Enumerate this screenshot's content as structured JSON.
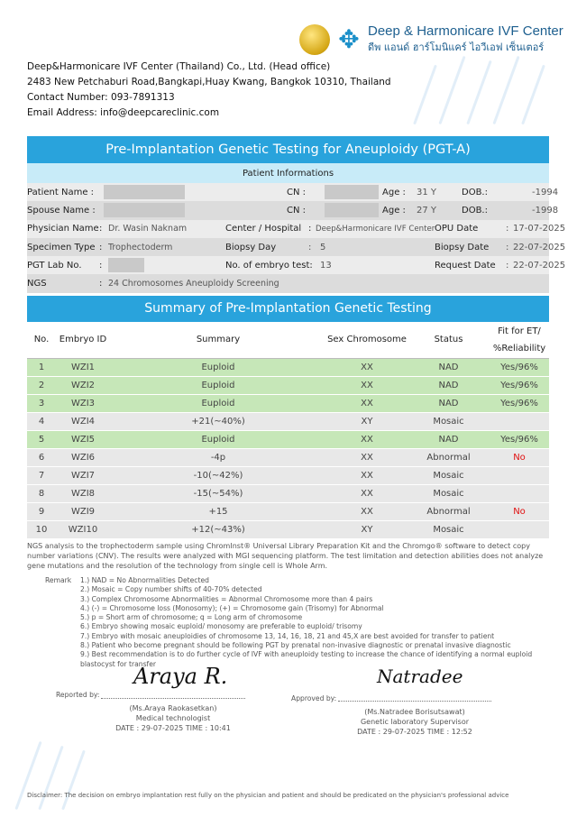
{
  "header": {
    "brand_en": "Deep & Harmonicare IVF Center",
    "brand_th": "ดีพ แอนด์ ฮาร์โมนิแคร์ ไอวีเอฟ เซ็นเตอร์",
    "address": [
      "Deep&Harmonicare IVF Center (Thailand) Co., Ltd. (Head office)",
      "2483 New Petchaburi Road,Bangkapi,Huay Kwang, Bangkok 10310, Thailand",
      "Contact Number: 093-7891313",
      "Email Address: info@deepcareclinic.com"
    ]
  },
  "title": "Pre-Implantation Genetic Testing for Aneuploidy (PGT-A)",
  "patient": {
    "heading": "Patient Informations",
    "patient_name_label": "Patient Name :",
    "cn_label": "CN :",
    "age_label": "Age :",
    "patient_age": "31 Y",
    "dob_label": "DOB.:",
    "patient_dob": "-1994",
    "spouse_name_label": "Spouse Name :",
    "spouse_age": "27 Y",
    "spouse_dob": "-1998",
    "physician_label": "Physician Name",
    "physician": "Dr. Wasin Naknam",
    "center_label": "Center / Hospital",
    "center": "Deep&Harmonicare IVF Center",
    "opu_label": "OPU Date",
    "opu": "17-07-2025",
    "specimen_label": "Specimen Type",
    "specimen": "Trophectoderm",
    "biopsy_day_label": "Biopsy Day",
    "biopsy_day": "5",
    "biopsy_date_label": "Biopsy Date",
    "biopsy_date": "22-07-2025",
    "lab_label": "PGT Lab No.",
    "embryo_test_label": "No. of embryo test:",
    "embryo_test": "13",
    "request_label": "Request Date",
    "request": "22-07-2025",
    "ngs_label": "NGS",
    "ngs": "24 Chromosomes Aneuploidy Screening",
    "colon": ":"
  },
  "summary": {
    "heading": "Summary of Pre-Implantation Genetic Testing",
    "columns": [
      "No.",
      "Embryo ID",
      "Summary",
      "Sex Chromosome",
      "Status",
      "Fit for ET/ %Reliability"
    ],
    "rows": [
      [
        "1",
        "WZI1",
        "Euploid",
        "XX",
        "NAD",
        "Yes/96%"
      ],
      [
        "2",
        "WZI2",
        "Euploid",
        "XX",
        "NAD",
        "Yes/96%"
      ],
      [
        "3",
        "WZI3",
        "Euploid",
        "XX",
        "NAD",
        "Yes/96%"
      ],
      [
        "4",
        "WZI4",
        "+21(~40%)",
        "XY",
        "Mosaic",
        ""
      ],
      [
        "5",
        "WZI5",
        "Euploid",
        "XX",
        "NAD",
        "Yes/96%"
      ],
      [
        "6",
        "WZI6",
        "-4p",
        "XX",
        "Abnormal",
        "No"
      ],
      [
        "7",
        "WZI7",
        "-10(~42%)",
        "XX",
        "Mosaic",
        ""
      ],
      [
        "8",
        "WZI8",
        "-15(~54%)",
        "XX",
        "Mosaic",
        ""
      ],
      [
        "9",
        "WZI9",
        "+15",
        "XX",
        "Abnormal",
        "No"
      ],
      [
        "10",
        "WZI10",
        "+12(~43%)",
        "XY",
        "Mosaic",
        ""
      ]
    ]
  },
  "colors": {
    "band": "#29a3dc",
    "euploid_row": "#c6e7b8",
    "no": "#e01010"
  },
  "note": "NGS analysis to the trophectoderm sample using ChromInst® Universal Library Preparation Kit and the Chromgo® software to detect copy number variations (CNV). The results were analyzed with MGI sequencing platform. The test limitation and detection abilities does not analyze gene mutations and the resolution of the technology from single cell is Whole Arm.",
  "remark_label": "Remark",
  "remarks": [
    "1.) NAD = No Abnormalities Detected",
    "2.) Mosaic = Copy number shifts of 40-70% detected",
    "3.) Complex Chromosome Abnormalities = Abnormal Chromosome more than 4 pairs",
    "4.) (-) = Chromosome loss (Monosomy); (+) = Chromosome gain (Trisomy) for Abnormal",
    "5.) p = Short arm of chromosome; q = Long arm of chromosome",
    "6.) Embryo showing mosaic euploid/ monosomy are preferable to euploid/ trisomy",
    "7.) Embryo with mosaic aneuploidies of chromosome 13, 14, 16, 18, 21 and 45,X are best avoided for transfer to patient",
    "8.) Patient who become pregnant should be following PGT by prenatal non-invasive diagnostic or prenatal invasive diagnostic",
    "9.) Best recommendation is to do further cycle of IVF with aneuploidy testing to increase the chance of identifying a normal euploid blastocyst for transfer"
  ],
  "reported": {
    "label": "Reported by:",
    "signature": "Araya R.",
    "name": "(Ms.Araya Raokasetkan)",
    "role": "Medical technologist",
    "date": "DATE : 29-07-2025 TIME : 10:41"
  },
  "approved": {
    "label": "Approved by:",
    "signature": "Natradee",
    "name": "(Ms.Natradee Borisutsawat)",
    "role": "Genetic laboratory Supervisor",
    "date": "DATE : 29-07-2025 TIME : 12:52"
  },
  "disclaimer": "Disclaimer: The decision on embryo implantation rest fully on the physician and patient and should be predicated on the physician's professional advice"
}
